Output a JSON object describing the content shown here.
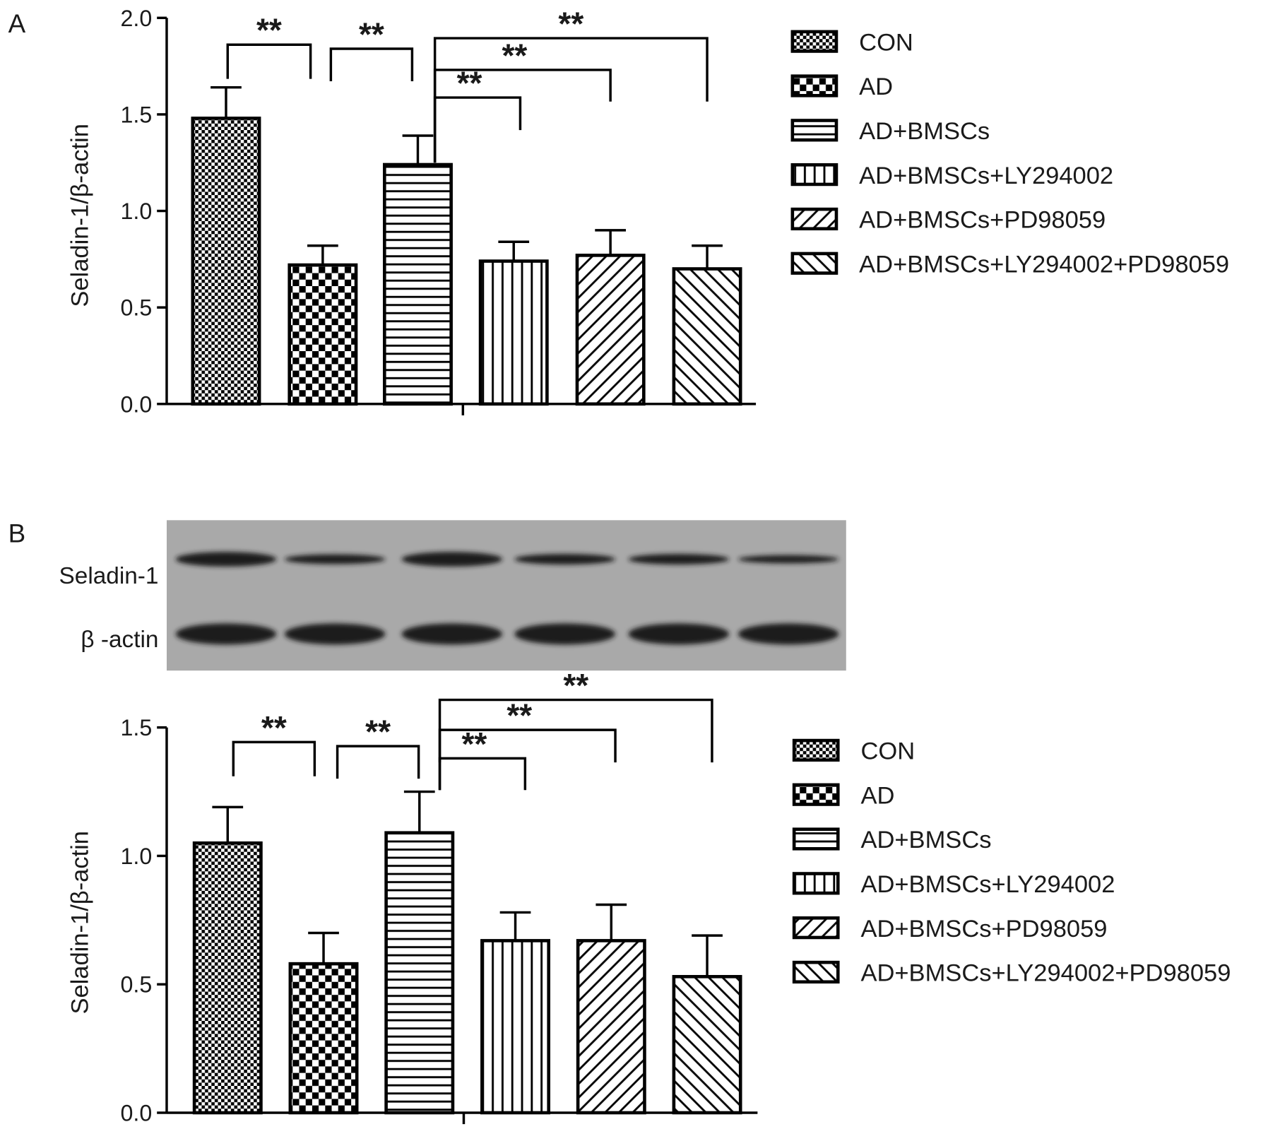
{
  "chart_data": [
    {
      "type": "bar",
      "panel": "A",
      "ylabel": "Seladin-1/β-actin",
      "ylim": [
        0,
        2
      ],
      "yticks": [
        {
          "value": 0,
          "label": "0.0"
        },
        {
          "value": 0.5,
          "label": "0.5"
        },
        {
          "value": 1,
          "label": "1.0"
        },
        {
          "value": 1.5,
          "label": "1.5"
        },
        {
          "value": 2,
          "label": "2.0"
        }
      ],
      "series": [
        {
          "name": "CON",
          "color": "#000000",
          "pattern": "fine-checker",
          "values": [
            1.48
          ],
          "errors": [
            0.16
          ]
        },
        {
          "name": "AD",
          "color": "#000000",
          "pattern": "checker",
          "values": [
            0.72
          ],
          "errors": [
            0.1
          ]
        },
        {
          "name": "AD+BMSCs",
          "color": "#000000",
          "pattern": "horizontal",
          "values": [
            1.24
          ],
          "errors": [
            0.15
          ]
        },
        {
          "name": "AD+BMSCs+LY294002",
          "color": "#000000",
          "pattern": "vertical",
          "values": [
            0.74
          ],
          "errors": [
            0.1
          ]
        },
        {
          "name": "AD+BMSCs+PD98059",
          "color": "#000000",
          "pattern": "diagonal-up",
          "values": [
            0.77
          ],
          "errors": [
            0.13
          ]
        },
        {
          "name": "AD+BMSCs+LY294002+PD98059",
          "color": "#000000",
          "pattern": "diagonal-down",
          "values": [
            0.7
          ],
          "errors": [
            0.12
          ]
        }
      ],
      "annotations": [
        {
          "pair": [
            0,
            1
          ],
          "text": "**"
        },
        {
          "pair": [
            1,
            2
          ],
          "text": "**"
        },
        {
          "pair": [
            2,
            3
          ],
          "text": "**"
        },
        {
          "pair": [
            2,
            4
          ],
          "text": "**"
        },
        {
          "pair": [
            2,
            5
          ],
          "text": "**"
        }
      ]
    },
    {
      "type": "bar",
      "panel": "B",
      "ylabel": "Seladin-1/β-actin",
      "blot": {
        "bands": [
          "Seladin-1",
          "β -actin"
        ]
      },
      "ylim": [
        0,
        1.5
      ],
      "yticks": [
        {
          "value": 0,
          "label": "0.0"
        },
        {
          "value": 0.5,
          "label": "0.5"
        },
        {
          "value": 1,
          "label": "1.0"
        },
        {
          "value": 1.5,
          "label": "1.5"
        }
      ],
      "series": [
        {
          "name": "CON",
          "color": "#000000",
          "pattern": "fine-checker",
          "values": [
            1.05
          ],
          "errors": [
            0.14
          ]
        },
        {
          "name": "AD",
          "color": "#000000",
          "pattern": "checker",
          "values": [
            0.58
          ],
          "errors": [
            0.12
          ]
        },
        {
          "name": "AD+BMSCs",
          "color": "#000000",
          "pattern": "horizontal",
          "values": [
            1.09
          ],
          "errors": [
            0.16
          ]
        },
        {
          "name": "AD+BMSCs+LY294002",
          "color": "#000000",
          "pattern": "vertical",
          "values": [
            0.67
          ],
          "errors": [
            0.11
          ]
        },
        {
          "name": "AD+BMSCs+PD98059",
          "color": "#000000",
          "pattern": "diagonal-up",
          "values": [
            0.67
          ],
          "errors": [
            0.14
          ]
        },
        {
          "name": "AD+BMSCs+LY294002+PD98059",
          "color": "#000000",
          "pattern": "diagonal-down",
          "values": [
            0.53
          ],
          "errors": [
            0.16
          ]
        }
      ],
      "annotations": [
        {
          "pair": [
            0,
            1
          ],
          "text": "**"
        },
        {
          "pair": [
            1,
            2
          ],
          "text": "**"
        },
        {
          "pair": [
            2,
            3
          ],
          "text": "**"
        },
        {
          "pair": [
            2,
            4
          ],
          "text": "**"
        },
        {
          "pair": [
            2,
            5
          ],
          "text": "**"
        }
      ]
    }
  ]
}
